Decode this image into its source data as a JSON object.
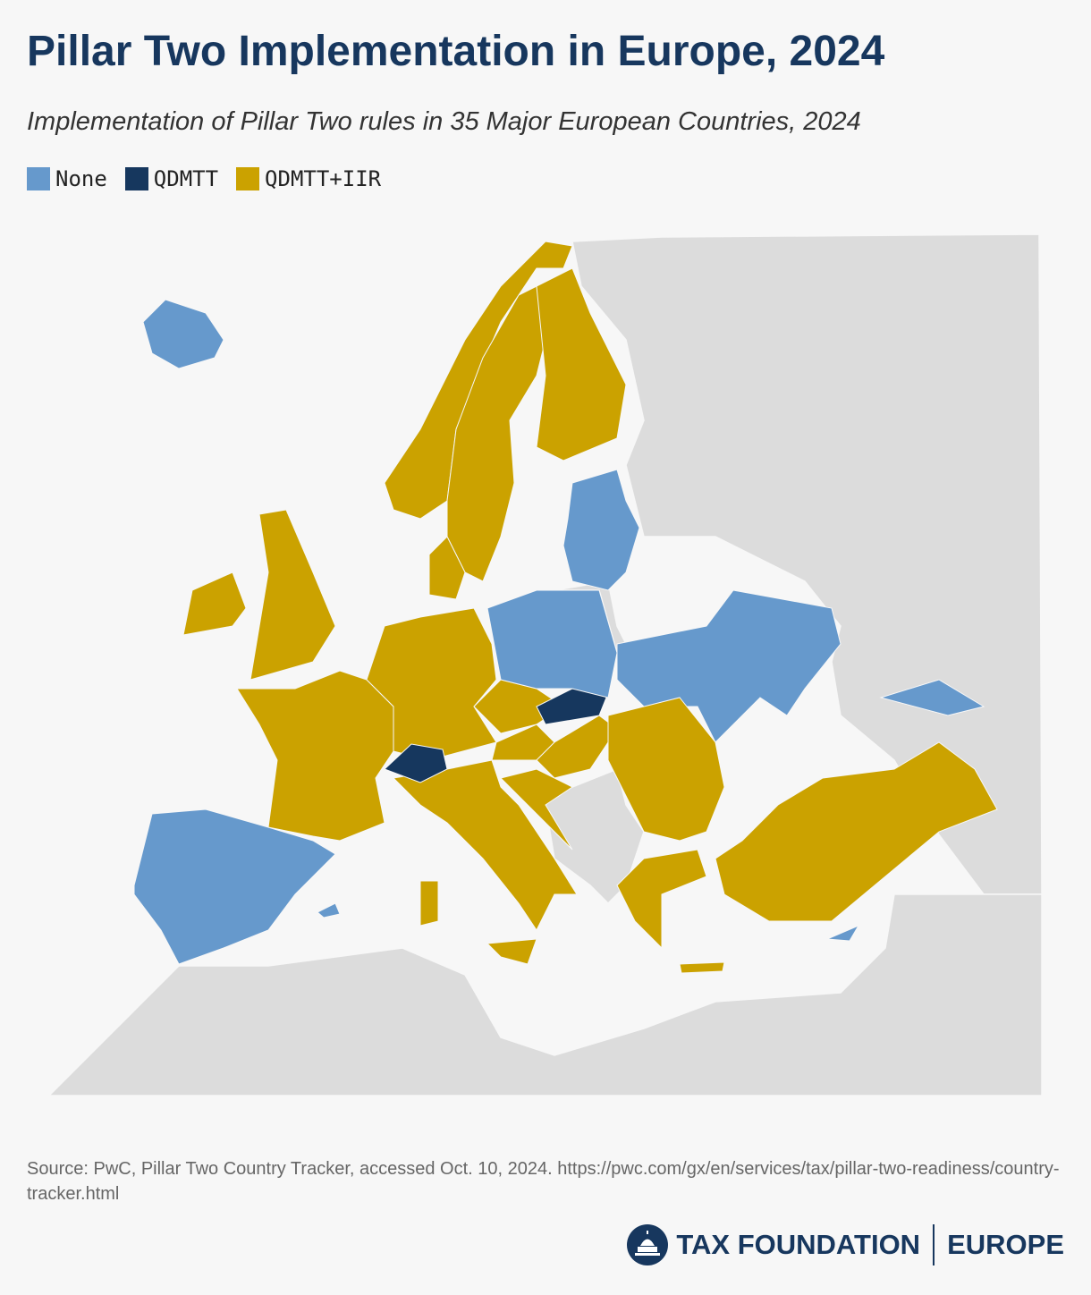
{
  "title": "Pillar Two Implementation in Europe, 2024",
  "subtitle": "Implementation of Pillar Two rules in 35 Major European Countries, 2024",
  "legend": [
    {
      "label": "None",
      "color": "#6699cc"
    },
    {
      "label": "QDMTT",
      "color": "#16375e"
    },
    {
      "label": "QDMTT+IIR",
      "color": "#cba200"
    }
  ],
  "source": "Source: PwC, Pillar Two Country Tracker, accessed Oct. 10, 2024. https://pwc.com/gx/en/services/tax/pillar-two-readiness/country-tracker.html",
  "logo": {
    "name": "TAX FOUNDATION",
    "region": "EUROPE"
  }
}
